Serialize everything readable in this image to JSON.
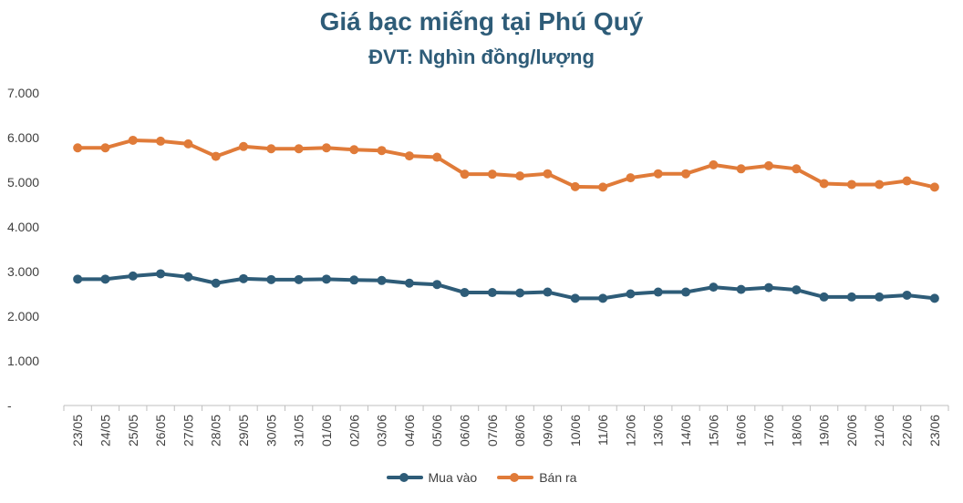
{
  "chart_data": {
    "type": "line",
    "title": "Giá bạc miếng tại Phú Quý",
    "subtitle": "ĐVT: Nghìn đồng/lượng",
    "categories": [
      "23/05",
      "24/05",
      "25/05",
      "26/05",
      "27/05",
      "28/05",
      "29/05",
      "30/05",
      "31/05",
      "01/06",
      "02/06",
      "03/06",
      "04/06",
      "05/06",
      "06/06",
      "07/06",
      "08/06",
      "09/06",
      "10/06",
      "11/06",
      "12/06",
      "13/06",
      "14/06",
      "15/06",
      "16/06",
      "17/06",
      "18/06",
      "19/06",
      "20/06",
      "21/06",
      "22/06",
      "23/06"
    ],
    "ylim": [
      0,
      7000
    ],
    "yticks": [
      {
        "value": 0,
        "label": "-"
      },
      {
        "value": 1000,
        "label": "1.000"
      },
      {
        "value": 2000,
        "label": "2.000"
      },
      {
        "value": 3000,
        "label": "3.000"
      },
      {
        "value": 4000,
        "label": "4.000"
      },
      {
        "value": 5000,
        "label": "5.000"
      },
      {
        "value": 6000,
        "label": "6.000"
      },
      {
        "value": 7000,
        "label": "7.000"
      }
    ],
    "grid": false,
    "legend_position": "bottom",
    "series": [
      {
        "name": "Mua vào",
        "color": "#2e5c78",
        "values": [
          2830,
          2830,
          2900,
          2950,
          2880,
          2740,
          2840,
          2820,
          2820,
          2830,
          2810,
          2800,
          2740,
          2710,
          2530,
          2530,
          2520,
          2540,
          2400,
          2400,
          2500,
          2540,
          2540,
          2650,
          2600,
          2640,
          2590,
          2430,
          2430,
          2430,
          2470,
          2400
        ]
      },
      {
        "name": "Bán ra",
        "color": "#e07b39",
        "values": [
          5770,
          5770,
          5940,
          5920,
          5860,
          5580,
          5800,
          5750,
          5750,
          5770,
          5730,
          5710,
          5590,
          5560,
          5180,
          5180,
          5140,
          5190,
          4900,
          4890,
          5100,
          5190,
          5190,
          5390,
          5300,
          5370,
          5300,
          4970,
          4950,
          4950,
          5030,
          4890
        ]
      }
    ]
  }
}
